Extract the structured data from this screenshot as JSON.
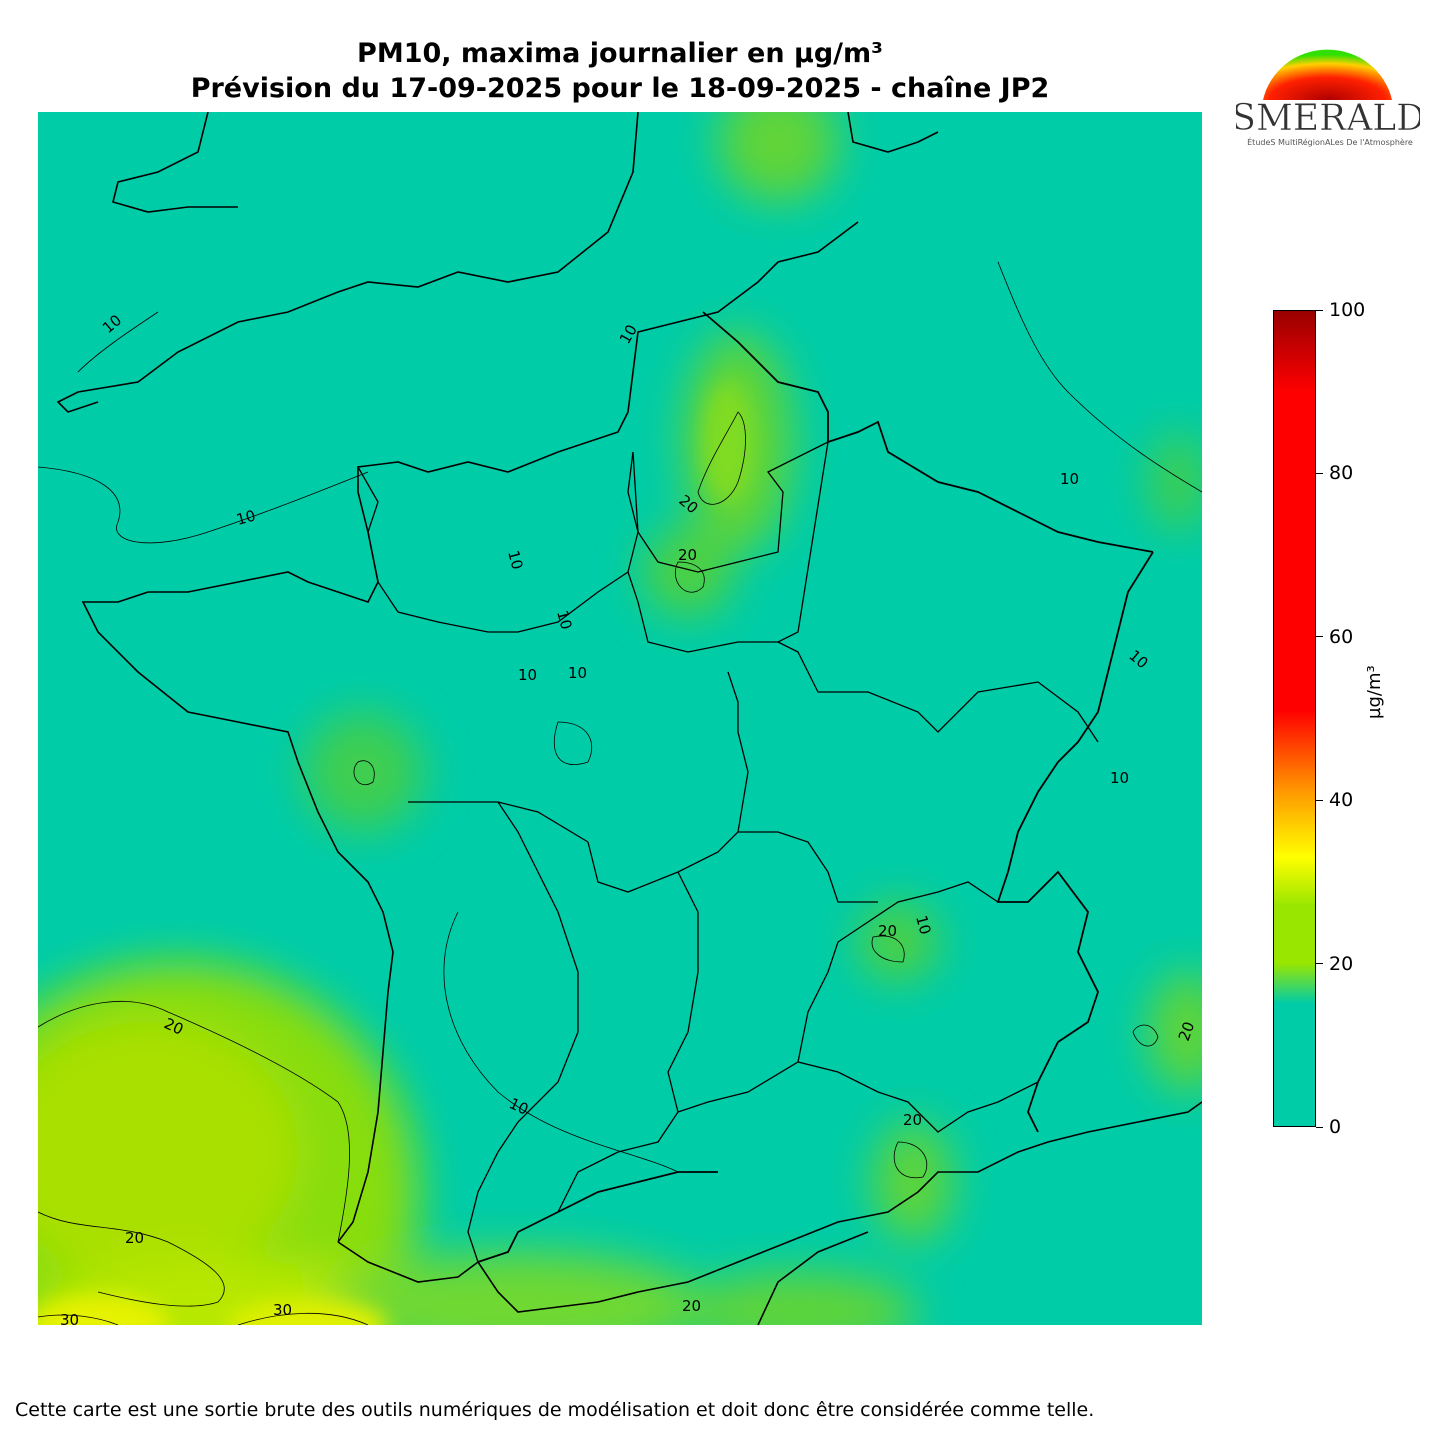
{
  "title_line1": "PM10, maxima journalier en µg/m³",
  "title_line2": "Prévision du 17-09-2025 pour le 18-09-2025 - chaîne JP2",
  "logo": {
    "text": "ESMERALDA",
    "subtitle": "ÉtudeS MultiRégionALes De l'Atmosphère"
  },
  "colorbar": {
    "unit": "µg/m³",
    "ticks": [
      "0",
      "20",
      "40",
      "60",
      "80",
      "100"
    ],
    "range": [
      0,
      100
    ],
    "colors": [
      "#00cca8",
      "#99e600",
      "#ffff00",
      "#ff9900",
      "#ff0000",
      "#990000"
    ]
  },
  "contour_labels": {
    "c10": "10",
    "c20": "20",
    "c30": "30"
  },
  "footer": "Cette carte est une sortie brute des outils numériques de modélisation et doit donc être considérée comme telle."
}
